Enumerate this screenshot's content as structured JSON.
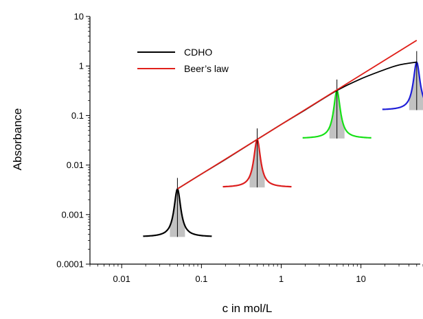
{
  "chart_data": {
    "type": "line",
    "title": "",
    "xlabel": "c in mol/L",
    "ylabel": "Absorbance",
    "x_scale": "log",
    "y_scale": "log",
    "xlim": [
      0.004,
      60
    ],
    "ylim": [
      0.0001,
      10
    ],
    "x_ticks": [
      {
        "value": 0.01,
        "label": "0.01"
      },
      {
        "value": 0.1,
        "label": "0.1"
      },
      {
        "value": 1,
        "label": "1"
      },
      {
        "value": 10,
        "label": "10"
      }
    ],
    "y_ticks": [
      {
        "value": 0.0001,
        "label": "0.0001"
      },
      {
        "value": 0.001,
        "label": "0.001"
      },
      {
        "value": 0.01,
        "label": "0.01"
      },
      {
        "value": 0.1,
        "label": "0.1"
      },
      {
        "value": 1,
        "label": "1"
      },
      {
        "value": 10,
        "label": "10"
      }
    ],
    "grid": false,
    "legend_position": "top-left",
    "series": [
      {
        "name": "CDHO",
        "color": "#000000",
        "x": [
          0.05,
          0.1,
          0.2,
          0.5,
          1,
          2,
          5,
          10,
          20,
          30,
          50
        ],
        "y": [
          0.0033,
          0.0066,
          0.013,
          0.033,
          0.066,
          0.13,
          0.32,
          0.55,
          0.85,
          1.05,
          1.2
        ]
      },
      {
        "name": "Beer’s law",
        "color": "#e0201a",
        "x": [
          0.05,
          50
        ],
        "y": [
          0.0033,
          3.3
        ]
      }
    ],
    "band_insets": [
      {
        "concentration": 0.05,
        "peak_absorbance": 0.0033,
        "color": "#000000"
      },
      {
        "concentration": 0.5,
        "peak_absorbance": 0.033,
        "color": "#dc1e1e"
      },
      {
        "concentration": 5,
        "peak_absorbance": 0.32,
        "color": "#16e016"
      },
      {
        "concentration": 50,
        "peak_absorbance": 1.2,
        "color": "#1f1fd8"
      }
    ]
  }
}
